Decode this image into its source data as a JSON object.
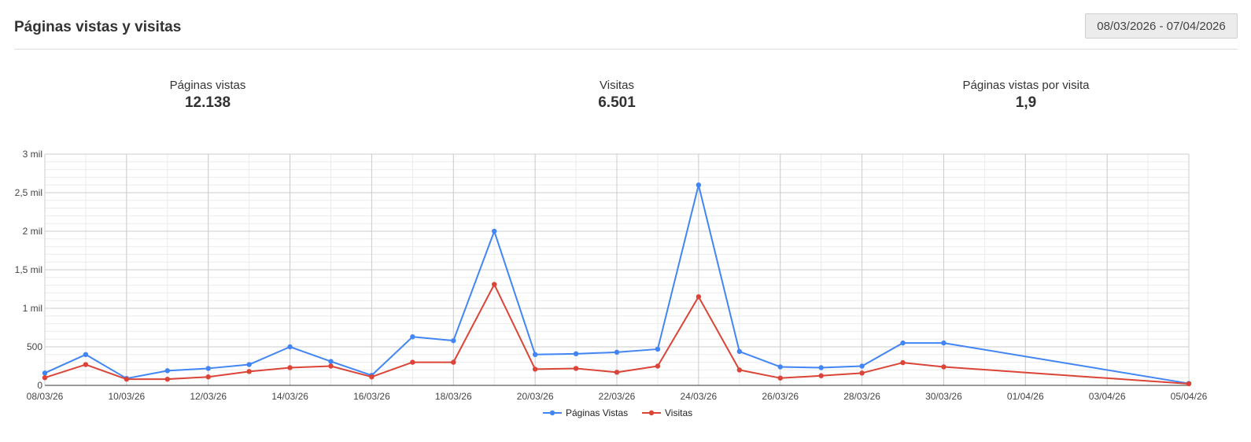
{
  "header": {
    "title": "Páginas vistas y visitas",
    "date_range": "08/03/2026 - 07/04/2026"
  },
  "stats": [
    {
      "label": "Páginas vistas",
      "value": "12.138"
    },
    {
      "label": "Visitas",
      "value": "6.501"
    },
    {
      "label": "Páginas vistas por visita",
      "value": "1,9"
    }
  ],
  "colors": {
    "pageviews": "#4285f4",
    "visits": "#db4437",
    "grid_major": "#cccccc",
    "grid_minor": "#ebebeb"
  },
  "chart_data": {
    "type": "line",
    "x": [
      "08/03/26",
      "09/03/26",
      "10/03/26",
      "11/03/26",
      "12/03/26",
      "13/03/26",
      "14/03/26",
      "15/03/26",
      "16/03/26",
      "17/03/26",
      "18/03/26",
      "19/03/26",
      "20/03/26",
      "21/03/26",
      "22/03/26",
      "23/03/26",
      "24/03/26",
      "25/03/26",
      "26/03/26",
      "27/03/26",
      "28/03/26",
      "29/03/26",
      "30/03/26",
      "05/04/26"
    ],
    "series": [
      {
        "name": "Páginas Vistas",
        "color": "#4285f4",
        "values": [
          160,
          400,
          90,
          190,
          220,
          270,
          500,
          310,
          130,
          630,
          580,
          2000,
          400,
          410,
          430,
          470,
          2600,
          440,
          240,
          230,
          250,
          550,
          550,
          25
        ]
      },
      {
        "name": "Visitas",
        "color": "#db4437",
        "values": [
          100,
          270,
          80,
          80,
          110,
          180,
          230,
          250,
          110,
          300,
          300,
          1310,
          210,
          220,
          170,
          250,
          1150,
          200,
          95,
          125,
          160,
          295,
          240,
          20
        ]
      }
    ],
    "x_tick_labels": [
      "08/03/26",
      "10/03/26",
      "12/03/26",
      "14/03/26",
      "16/03/26",
      "18/03/26",
      "20/03/26",
      "22/03/26",
      "24/03/26",
      "26/03/26",
      "28/03/26",
      "30/03/26",
      "01/04/26",
      "03/04/26",
      "05/04/26"
    ],
    "y_ticks": [
      0,
      500,
      1000,
      1500,
      2000,
      2500,
      3000
    ],
    "y_tick_labels": [
      "0",
      "500",
      "1 mil",
      "1,5 mil",
      "2 mil",
      "2,5 mil",
      "3 mil"
    ],
    "ylim": [
      0,
      3000
    ],
    "xlim": [
      "08/03/26",
      "05/04/26"
    ],
    "grid": true,
    "legend": "bottom"
  }
}
